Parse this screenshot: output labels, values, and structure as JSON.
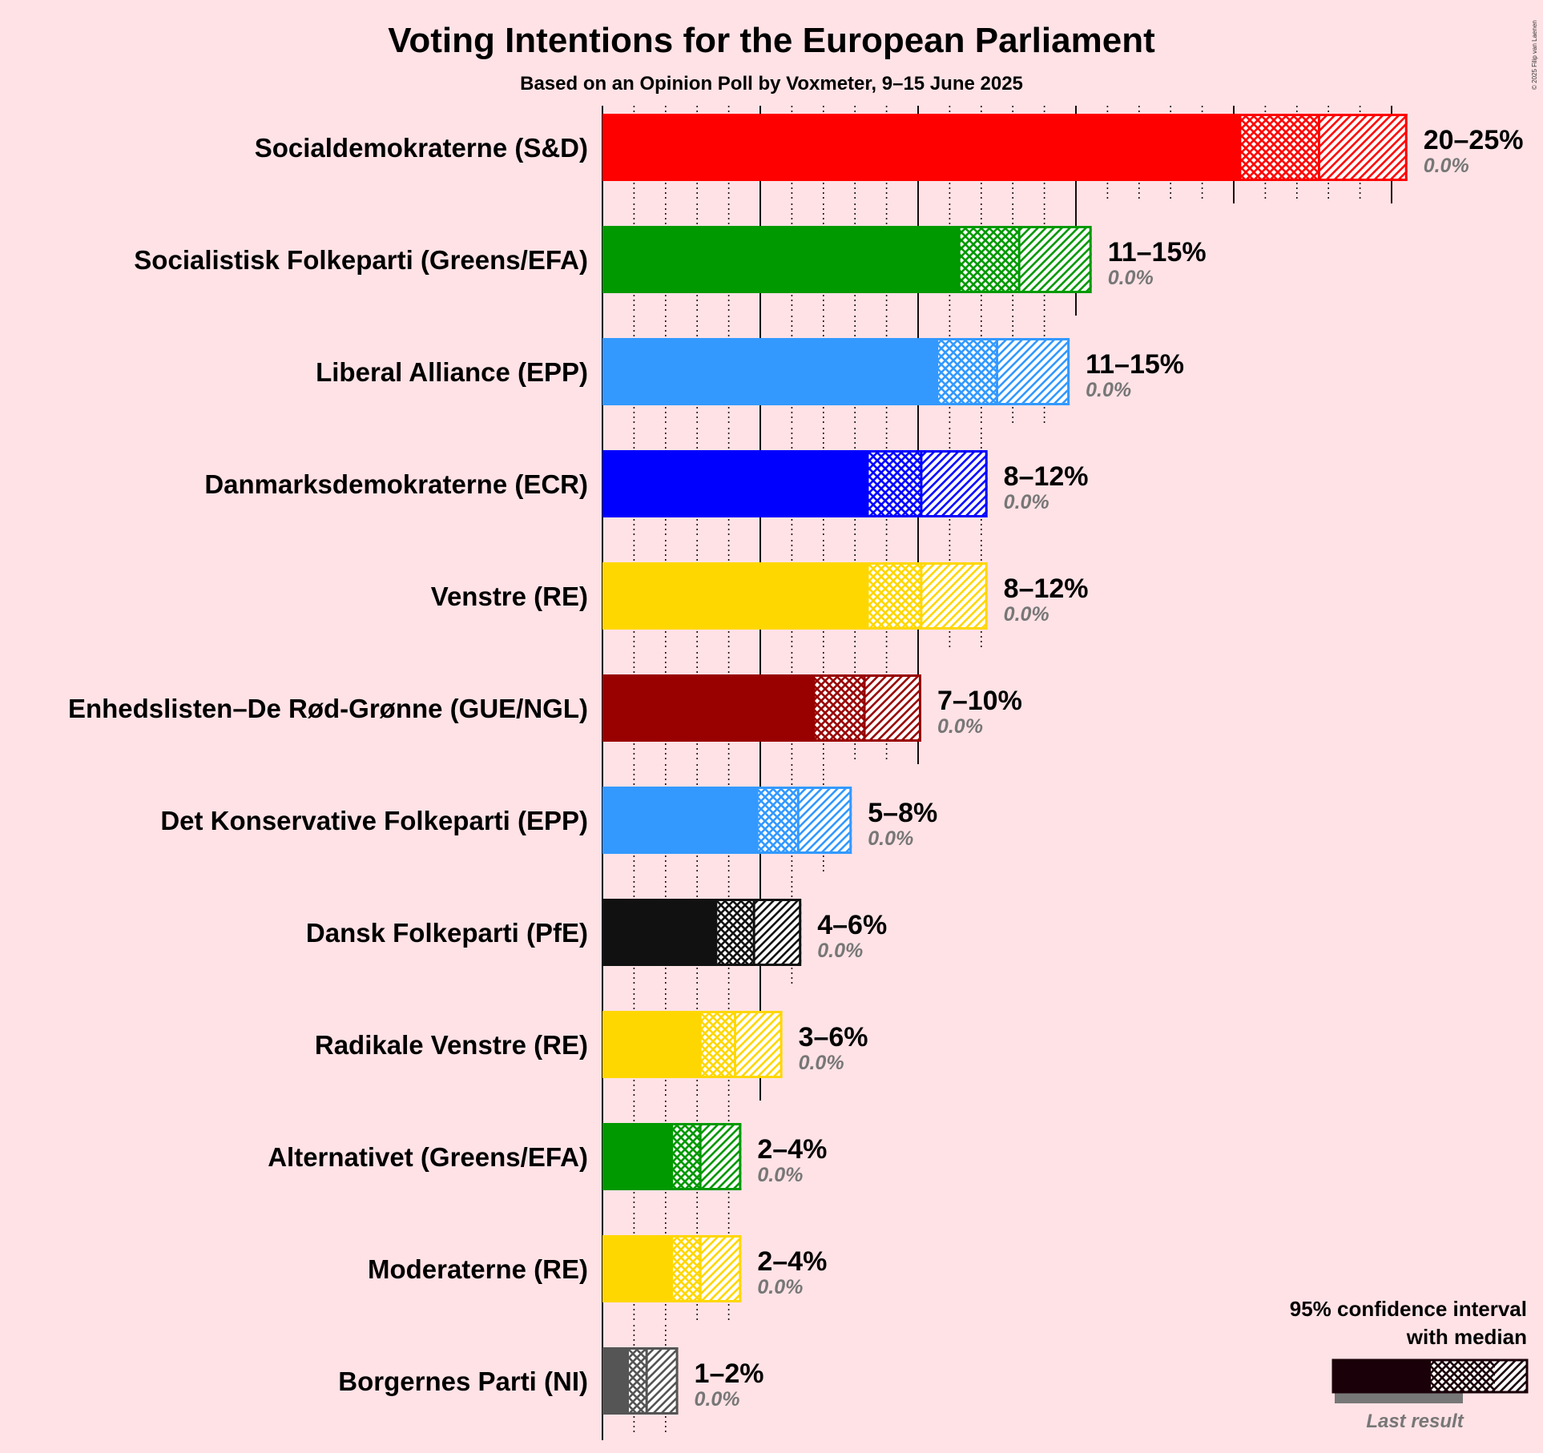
{
  "title": "Voting Intentions for the European Parliament",
  "subtitle": "Based on an Opinion Poll by Voxmeter, 9–15 June 2025",
  "copyright": "© 2025 Filip van Laenen",
  "legend": {
    "line1": "95% confidence interval",
    "line2": "with median",
    "last_result": "Last result",
    "color": "#1a0008"
  },
  "chart_data": {
    "type": "bar",
    "orientation": "horizontal",
    "x_unit": "%",
    "xlim": [
      0,
      25
    ],
    "major_gridlines": [
      0,
      5,
      10,
      15,
      20,
      25
    ],
    "minor_gridlines": [
      1,
      2,
      3,
      4,
      6,
      7,
      8,
      9,
      11,
      12,
      13,
      14,
      16,
      17,
      18,
      19,
      21,
      22,
      23,
      24
    ],
    "parties": [
      {
        "name": "Socialdemokraterne (S&D)",
        "color": "#FF0000",
        "ci_low": 20.2,
        "median": 22.7,
        "ci_high": 25.5,
        "range_label": "20–25%",
        "last_result_label": "0.0%",
        "last_result": 0.0
      },
      {
        "name": "Socialistisk Folkeparti (Greens/EFA)",
        "color": "#009900",
        "ci_low": 11.3,
        "median": 13.2,
        "ci_high": 15.5,
        "range_label": "11–15%",
        "last_result_label": "0.0%",
        "last_result": 0.0
      },
      {
        "name": "Liberal Alliance (EPP)",
        "color": "#3399FF",
        "ci_low": 10.6,
        "median": 12.5,
        "ci_high": 14.8,
        "range_label": "11–15%",
        "last_result_label": "0.0%",
        "last_result": 0.0
      },
      {
        "name": "Danmarksdemokraterne (ECR)",
        "color": "#0000FF",
        "ci_low": 8.4,
        "median": 10.1,
        "ci_high": 12.2,
        "range_label": "8–12%",
        "last_result_label": "0.0%",
        "last_result": 0.0
      },
      {
        "name": "Venstre (RE)",
        "color": "#FFD700",
        "ci_low": 8.4,
        "median": 10.1,
        "ci_high": 12.2,
        "range_label": "8–12%",
        "last_result_label": "0.0%",
        "last_result": 0.0
      },
      {
        "name": "Enhedslisten–De Rød-Grønne (GUE/NGL)",
        "color": "#990000",
        "ci_low": 6.7,
        "median": 8.3,
        "ci_high": 10.1,
        "range_label": "7–10%",
        "last_result_label": "0.0%",
        "last_result": 0.0
      },
      {
        "name": "Det Konservative Folkeparti (EPP)",
        "color": "#3399FF",
        "ci_low": 4.9,
        "median": 6.2,
        "ci_high": 7.9,
        "range_label": "5–8%",
        "last_result_label": "0.0%",
        "last_result": 0.0
      },
      {
        "name": "Dansk Folkeparti (PfE)",
        "color": "#111111",
        "ci_low": 3.6,
        "median": 4.8,
        "ci_high": 6.3,
        "range_label": "4–6%",
        "last_result_label": "0.0%",
        "last_result": 0.0
      },
      {
        "name": "Radikale Venstre (RE)",
        "color": "#FFD700",
        "ci_low": 3.1,
        "median": 4.2,
        "ci_high": 5.7,
        "range_label": "3–6%",
        "last_result_label": "0.0%",
        "last_result": 0.0
      },
      {
        "name": "Alternativet (Greens/EFA)",
        "color": "#009900",
        "ci_low": 2.2,
        "median": 3.1,
        "ci_high": 4.4,
        "range_label": "2–4%",
        "last_result_label": "0.0%",
        "last_result": 0.0
      },
      {
        "name": "Moderaterne (RE)",
        "color": "#FFD700",
        "ci_low": 2.2,
        "median": 3.1,
        "ci_high": 4.4,
        "range_label": "2–4%",
        "last_result_label": "0.0%",
        "last_result": 0.0
      },
      {
        "name": "Borgernes Parti (NI)",
        "color": "#555555",
        "ci_low": 0.8,
        "median": 1.4,
        "ci_high": 2.4,
        "range_label": "1–2%",
        "last_result_label": "0.0%",
        "last_result": 0.0
      }
    ]
  }
}
